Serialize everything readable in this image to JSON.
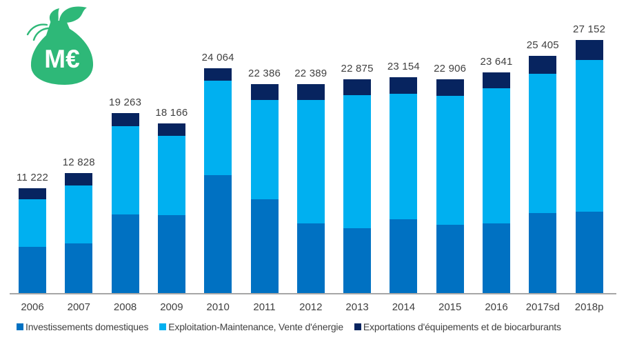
{
  "icon": {
    "name": "money-bag",
    "label": "M€",
    "color": "#2EB878"
  },
  "chart_data": {
    "type": "bar",
    "stacked": true,
    "unit": "M€",
    "title": "",
    "xlabel": "",
    "ylabel": "",
    "grid": false,
    "legend_position": "bottom",
    "ylim": [
      0,
      27500
    ],
    "categories": [
      "2006",
      "2007",
      "2008",
      "2009",
      "2010",
      "2011",
      "2012",
      "2013",
      "2014",
      "2015",
      "2016",
      "2017sd",
      "2018p"
    ],
    "series": [
      {
        "name": "Investissements domestiques",
        "color": "#0071C2",
        "values": [
          4980,
          5320,
          8400,
          8340,
          12600,
          10030,
          7460,
          6970,
          7910,
          7300,
          7500,
          8540,
          8730
        ]
      },
      {
        "name": "Exploitation-Maintenance, Vente d'énergie",
        "color": "#00B0F0",
        "values": [
          5057,
          6173,
          9463,
          8491,
          10164,
          10681,
          13199,
          14225,
          13444,
          13851,
          14461,
          14990,
          16222
        ]
      },
      {
        "name": "Exportations d'équipements et de biocarburants",
        "color": "#07245F",
        "values": [
          1185,
          1335,
          1400,
          1335,
          1300,
          1675,
          1730,
          1680,
          1800,
          1755,
          1680,
          1875,
          2200
        ]
      }
    ],
    "totals": [
      11222,
      12828,
      19263,
      18166,
      24064,
      22386,
      22389,
      22875,
      23154,
      22906,
      23641,
      25405,
      27152
    ],
    "total_labels": [
      "11 222",
      "12 828",
      "19 263",
      "18 166",
      "24 064",
      "22 386",
      "22 389",
      "22 875",
      "23 154",
      "22 906",
      "23 641",
      "25 405",
      "27 152"
    ]
  },
  "style": {
    "axis_line_color": "#A6A6A6",
    "text_color": "#3F3F3F",
    "background": "#FFFFFF"
  }
}
